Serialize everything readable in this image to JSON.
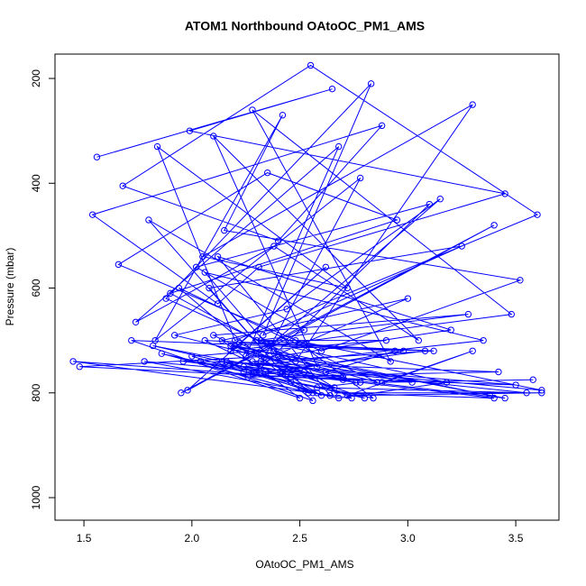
{
  "chart_data": {
    "type": "line",
    "title": "ATOM1 Northbound OAtoOC_PM1_AMS",
    "x_label": "OAtoOC_PM1_AMS",
    "y_label": "Pressure (mbar)",
    "color": "#0000ff",
    "marker": "open-circle",
    "xlim": [
      1.366,
      3.7
    ],
    "ylim": [
      1043,
      153.5
    ],
    "xticks": [
      1.5,
      {
        "value": 2,
        "label": "2.0"
      },
      2.5,
      {
        "value": 3,
        "label": "3.0"
      },
      3.5
    ],
    "yticks": [
      200,
      400,
      600,
      800,
      1000
    ],
    "x": [
      1.56,
      2.65,
      1.99,
      3.45,
      2.31,
      2.12,
      1.54,
      2.88,
      2.4,
      1.68,
      2.55,
      3.6,
      2.2,
      1.84,
      2.72,
      2.05,
      3.3,
      2.48,
      1.9,
      2.95,
      2.35,
      1.66,
      2.6,
      3.52,
      2.15,
      2.42,
      1.83,
      2.78,
      2.3,
      3.1,
      2.02,
      2.52,
      1.95,
      3.4,
      2.25,
      2.68,
      1.74,
      2.38,
      3.05,
      2.1,
      2.58,
      1.88,
      2.83,
      2.33,
      3.25,
      2.08,
      2.46,
      1.8,
      2.92,
      2.28,
      3.48,
      2.18,
      2.62,
      1.98,
      2.36,
      3.15,
      2.44,
      1.92,
      2.7,
      2.24,
      3.35,
      2.06,
      2.54,
      1.86,
      2.8,
      2.32,
      3.0,
      2.14,
      2.5,
      1.72,
      2.98,
      2.26,
      3.42,
      2.04,
      2.56,
      1.94,
      2.86,
      2.4,
      3.2,
      2.12,
      2.64,
      1.78,
      2.34,
      3.08,
      2.22,
      2.74,
      1.45,
      2.46,
      3.5,
      2.16,
      2.58,
      2.0,
      2.9,
      2.3,
      3.28,
      2.1,
      2.44,
      1.82,
      2.66,
      2.38,
      3.38,
      2.2,
      2.52,
      1.96,
      2.76,
      2.28,
      3.12,
      2.06,
      2.6,
      2.42,
      3.45,
      2.18,
      2.7,
      1.48,
      2.36,
      3.02,
      2.24,
      2.84,
      2.48,
      3.62,
      2.14,
      2.56,
      2.68,
      3.18,
      2.32,
      2.94,
      2.62,
      3.55,
      2.58,
      2.78,
      3.4,
      2.66,
      3.62,
      2.72,
      3.3,
      2.88,
      3.58
    ],
    "values": [
      350,
      220,
      300,
      420,
      560,
      630,
      460,
      290,
      510,
      405,
      175,
      460,
      700,
      330,
      600,
      540,
      250,
      740,
      610,
      470,
      380,
      555,
      720,
      585,
      490,
      270,
      700,
      390,
      760,
      440,
      560,
      680,
      800,
      480,
      730,
      330,
      665,
      520,
      700,
      310,
      750,
      620,
      210,
      690,
      520,
      600,
      780,
      470,
      740,
      260,
      650,
      720,
      560,
      795,
      710,
      430,
      640,
      690,
      770,
      750,
      700,
      570,
      800,
      725,
      810,
      740,
      620,
      700,
      810,
      700,
      720,
      770,
      760,
      740,
      815,
      600,
      780,
      730,
      680,
      540,
      805,
      740,
      760,
      720,
      705,
      810,
      740,
      770,
      785,
      740,
      800,
      730,
      700,
      700,
      650,
      690,
      760,
      710,
      790,
      720,
      805,
      710,
      760,
      740,
      780,
      740,
      720,
      700,
      805,
      760,
      810,
      710,
      775,
      750,
      730,
      780,
      760,
      810,
      700,
      795,
      740,
      800,
      810,
      780,
      700,
      720,
      760,
      800,
      790,
      780,
      810,
      800,
      800,
      805,
      720,
      780,
      775
    ]
  }
}
